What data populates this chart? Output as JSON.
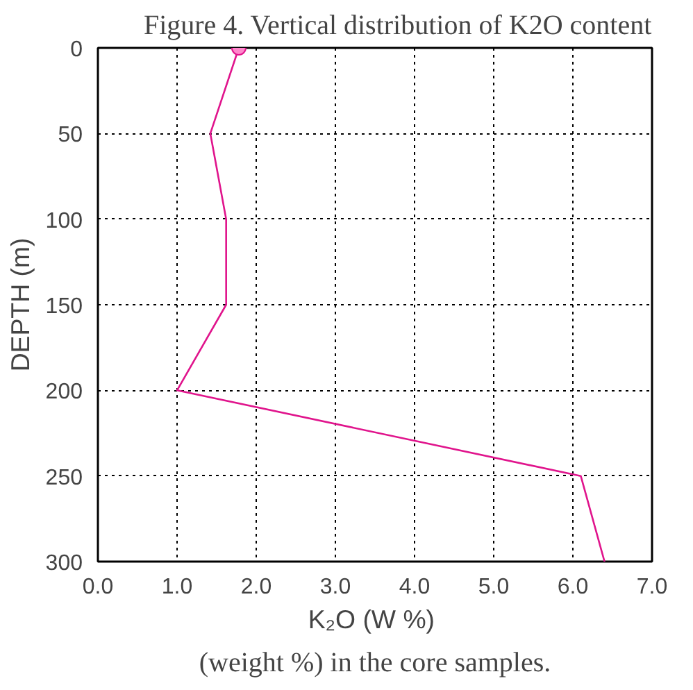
{
  "chart_data": {
    "type": "line",
    "title": "Figure 4. Vertical distribution of K2O content",
    "xlabel": "K₂O  (W %)",
    "ylabel": "DEPTH (m)",
    "series": [
      {
        "color": "#e0148c",
        "x": [
          1.78,
          1.42,
          1.62,
          1.62,
          1.0,
          6.1,
          6.4
        ],
        "values": [
          0,
          50,
          100,
          150,
          200,
          250,
          300
        ]
      },
      {
        "type": "scatter",
        "color": "#ff88cc",
        "x": [
          1.78
        ],
        "values": [
          0
        ]
      }
    ],
    "xlim": [
      0,
      7
    ],
    "xticks": [
      {
        "value": 0,
        "label": "0.0"
      },
      {
        "value": 1,
        "label": "1.0"
      },
      {
        "value": 2,
        "label": "2.0"
      },
      {
        "value": 3,
        "label": "3.0"
      },
      {
        "value": 4,
        "label": "4.0"
      },
      {
        "value": 5,
        "label": "5.0"
      },
      {
        "value": 6,
        "label": "6.0"
      },
      {
        "value": 7,
        "label": "7.0"
      }
    ],
    "ylim": [
      300,
      0
    ],
    "yticks": [
      0,
      50,
      100,
      150,
      200,
      250,
      300
    ],
    "grid": true,
    "line_style": "solid",
    "annotations": [
      "(weight %) in the core samples."
    ]
  }
}
